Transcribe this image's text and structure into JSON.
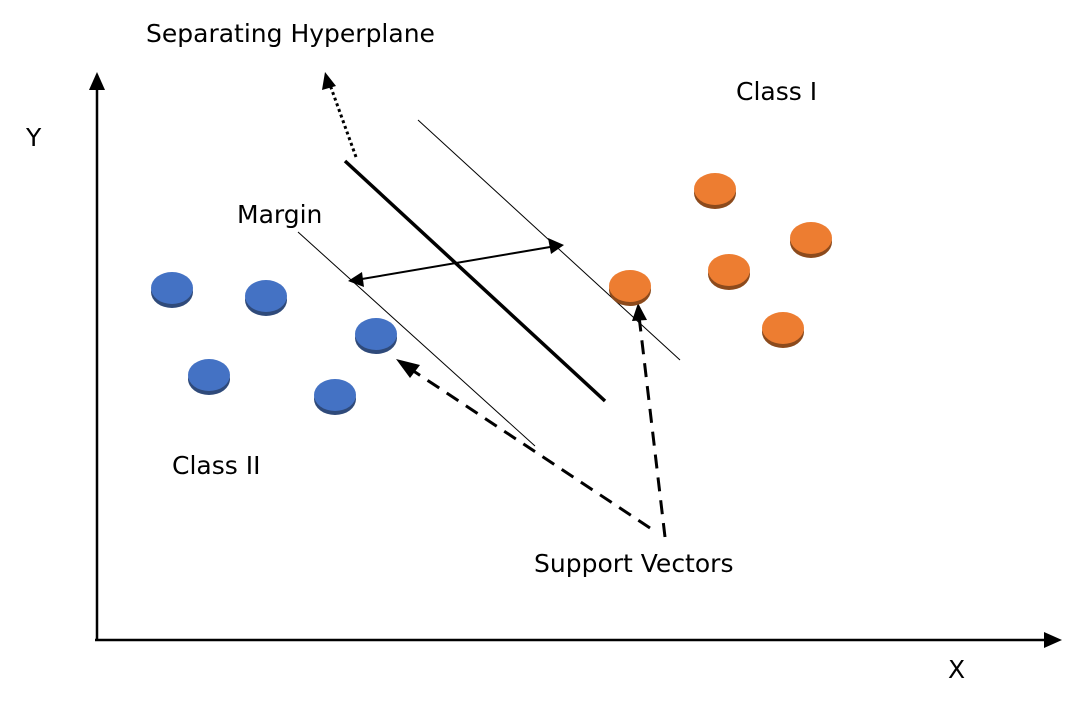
{
  "labels": {
    "separating_hyperplane": "Separating Hyperplane",
    "class_one": "Class I",
    "class_two": "Class II",
    "margin": "Margin",
    "support_vectors": "Support Vectors",
    "x_axis": "X",
    "y_axis": "Y"
  },
  "colors": {
    "class_one": "#ED7D31",
    "class_one_shadow": "#8C4A1C",
    "class_two": "#4472C4",
    "class_two_shadow": "#2F4A7A",
    "line": "#000000"
  },
  "classes": [
    {
      "name": "Class I",
      "color_key": "class_one",
      "points": 5,
      "support_vectors": 1
    },
    {
      "name": "Class II",
      "color_key": "class_two",
      "points": 5,
      "support_vectors": 1
    }
  ]
}
